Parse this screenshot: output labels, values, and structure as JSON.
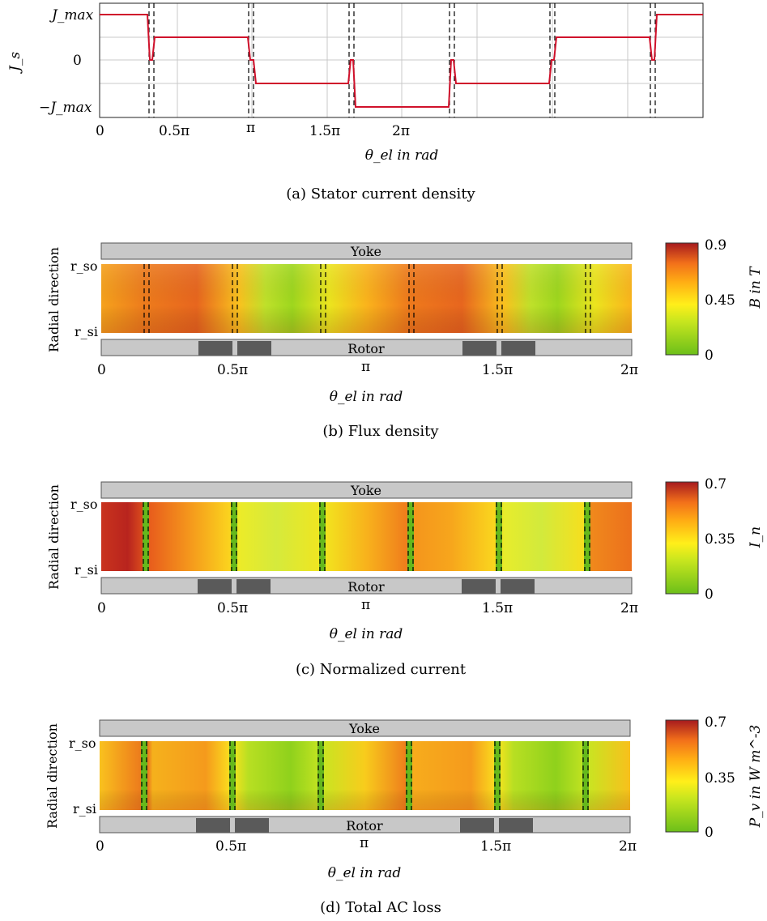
{
  "panel_a": {
    "ylabel": "J_s",
    "yticks": [
      "J_max",
      "0",
      "−J_max"
    ],
    "xticks": [
      "0",
      "0.5π",
      "π",
      "1.5π",
      "2π"
    ],
    "xlabel": "θ_el in rad",
    "caption": "(a) Stator current density",
    "line_color": "#d0112b"
  },
  "panel_b": {
    "ylabel": "Radial direction",
    "r_outer": "r_so",
    "r_inner": "r_si",
    "yoke": "Yoke",
    "rotor": "Rotor",
    "xticks": [
      "0",
      "0.5π",
      "π",
      "1.5π",
      "2π"
    ],
    "xlabel": "θ_el in rad",
    "colorbar": {
      "max": "0.9",
      "mid": "0.45",
      "min": "0",
      "label": "B in T"
    },
    "caption": "(b) Flux density"
  },
  "panel_c": {
    "ylabel": "Radial direction",
    "r_outer": "r_so",
    "r_inner": "r_si",
    "yoke": "Yoke",
    "rotor": "Rotor",
    "xticks": [
      "0",
      "0.5π",
      "π",
      "1.5π",
      "2π"
    ],
    "xlabel": "θ_el in rad",
    "colorbar": {
      "max": "0.7",
      "mid": "0.35",
      "min": "0",
      "label": "I_n"
    },
    "caption": "(c) Normalized current"
  },
  "panel_d": {
    "ylabel": "Radial direction",
    "r_outer": "r_so",
    "r_inner": "r_si",
    "yoke": "Yoke",
    "rotor": "Rotor",
    "xticks": [
      "0",
      "0.5π",
      "π",
      "1.5π",
      "2π"
    ],
    "xlabel": "θ_el in rad",
    "colorbar": {
      "max": "0.7",
      "mid": "0.35",
      "min": "0",
      "label": "P_v in W m^-3"
    },
    "caption": "(d) Total AC loss"
  }
}
